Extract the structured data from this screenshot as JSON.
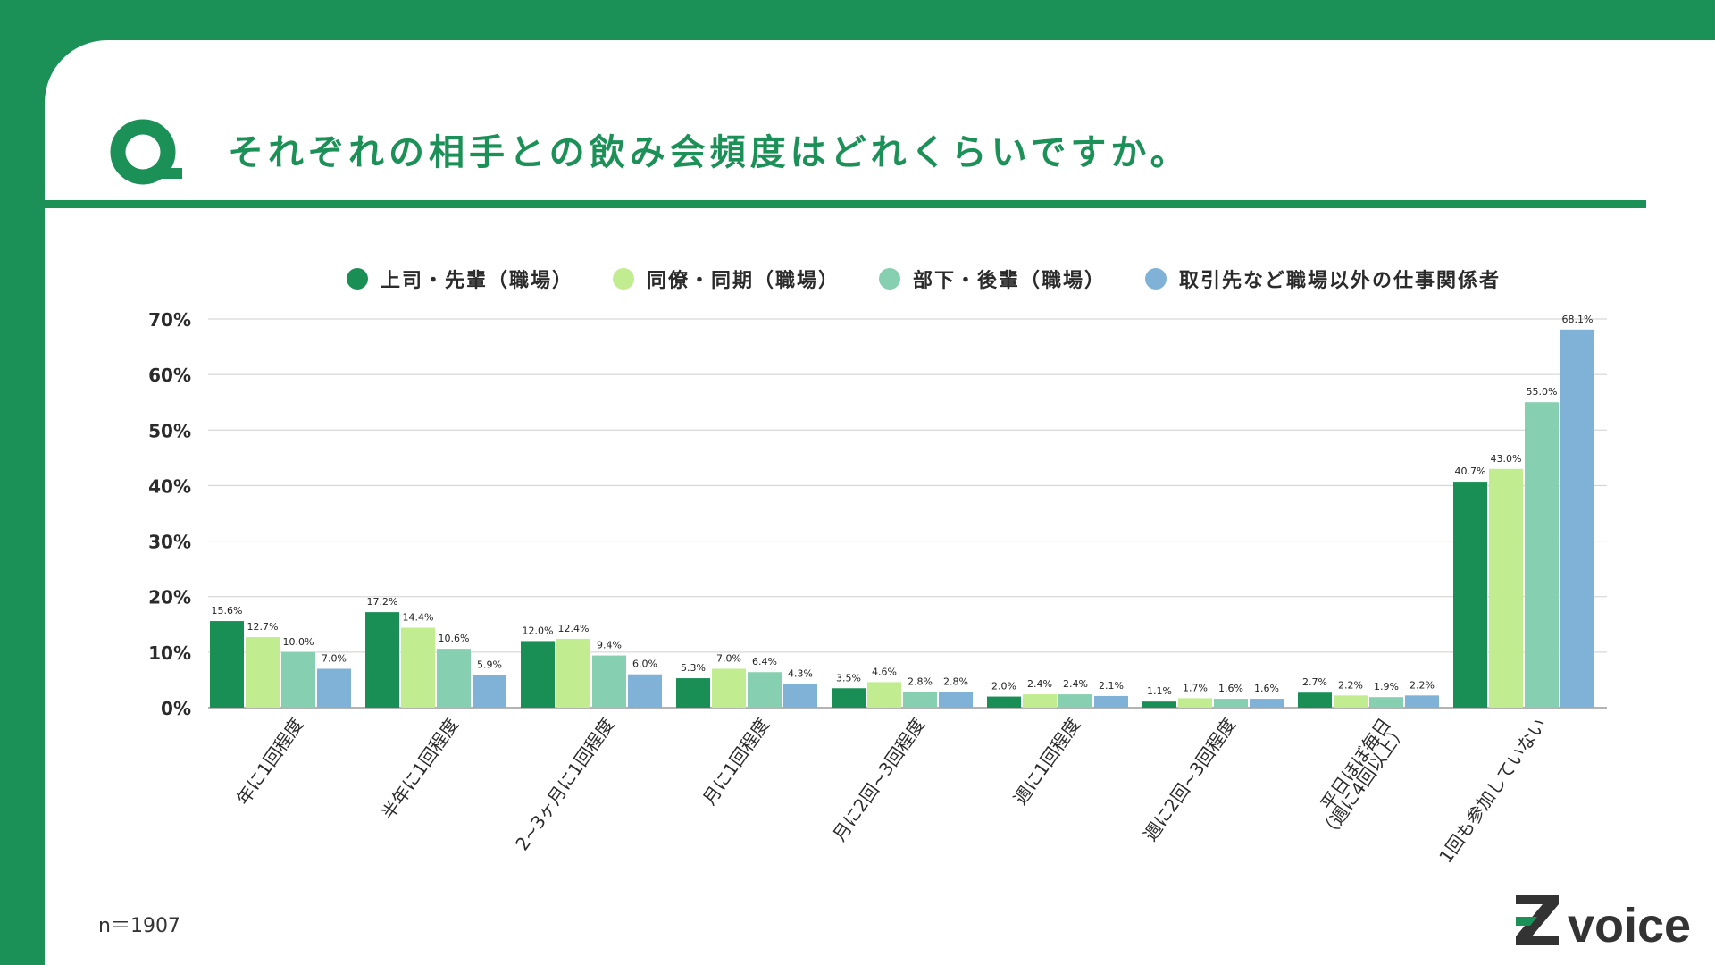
{
  "header": {
    "question_mark": "Q",
    "title": "それぞれの相手との飲み会頻度はどれくらいですか。"
  },
  "colors": {
    "brand": "#1b9057",
    "series": [
      "#1a8f55",
      "#c1ec8f",
      "#86cfb0",
      "#7fb2d6"
    ]
  },
  "chart_data": {
    "type": "bar",
    "categories": [
      "年に1回程度",
      "半年に1回程度",
      "2~3ヶ月に1回程度",
      "月に1回程度",
      "月に2回~3回程度",
      "週に1回程度",
      "週に2回~3回程度",
      "平日ほぼ毎日\n（週に4回以上）",
      "1回も参加していない"
    ],
    "series": [
      {
        "name": "上司・先輩（職場）",
        "values": [
          15.6,
          17.2,
          12.0,
          5.3,
          3.5,
          2.0,
          1.1,
          2.7,
          40.7
        ]
      },
      {
        "name": "同僚・同期（職場）",
        "values": [
          12.7,
          14.4,
          12.4,
          7.0,
          4.6,
          2.4,
          1.7,
          2.2,
          43.0
        ]
      },
      {
        "name": "部下・後輩（職場）",
        "values": [
          10.0,
          10.6,
          9.4,
          6.4,
          2.8,
          2.4,
          1.6,
          1.9,
          55.0
        ]
      },
      {
        "name": "取引先など職場以外の仕事関係者",
        "values": [
          7.0,
          5.9,
          6.0,
          4.3,
          2.8,
          2.1,
          1.6,
          2.2,
          68.1
        ]
      }
    ],
    "ylim": [
      0,
      70
    ],
    "yticks": [
      "0%",
      "10%",
      "20%",
      "30%",
      "40%",
      "50%",
      "60%",
      "70%"
    ],
    "value_suffix": "%",
    "grid": true,
    "legend_position": "top"
  },
  "footer": {
    "sample_size": "n＝1907",
    "logo_text": "voice",
    "logo_mark": "Z"
  }
}
